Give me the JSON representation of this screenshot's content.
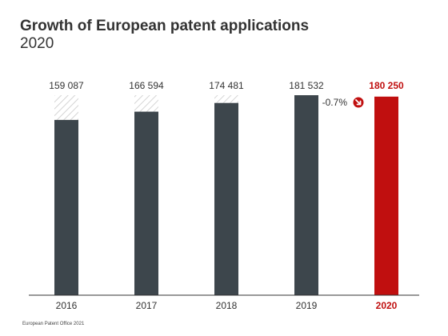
{
  "chart_data": {
    "type": "bar",
    "title": "Growth of European patent applications",
    "subtitle": "2020",
    "categories": [
      "2016",
      "2017",
      "2018",
      "2019",
      "2020"
    ],
    "value_labels": [
      "159 087",
      "166 594",
      "174 481",
      "181 532",
      "180 250"
    ],
    "values": [
      159087,
      166594,
      174481,
      181532,
      180250
    ],
    "reference_value": 181532,
    "highlight_index": 4,
    "change_label": "-0.7%",
    "change_icon": "arrow-down-right-icon",
    "xlabel": "",
    "ylabel": "",
    "ylim": [
      0,
      181532
    ],
    "grid": false,
    "legend": "none",
    "colors": {
      "bar": "#3d464c",
      "highlight": "#c00f0f",
      "hatch": "#c8c8c8",
      "text": "#333333"
    }
  },
  "footer": {
    "source": "European Patent Office 2021"
  }
}
